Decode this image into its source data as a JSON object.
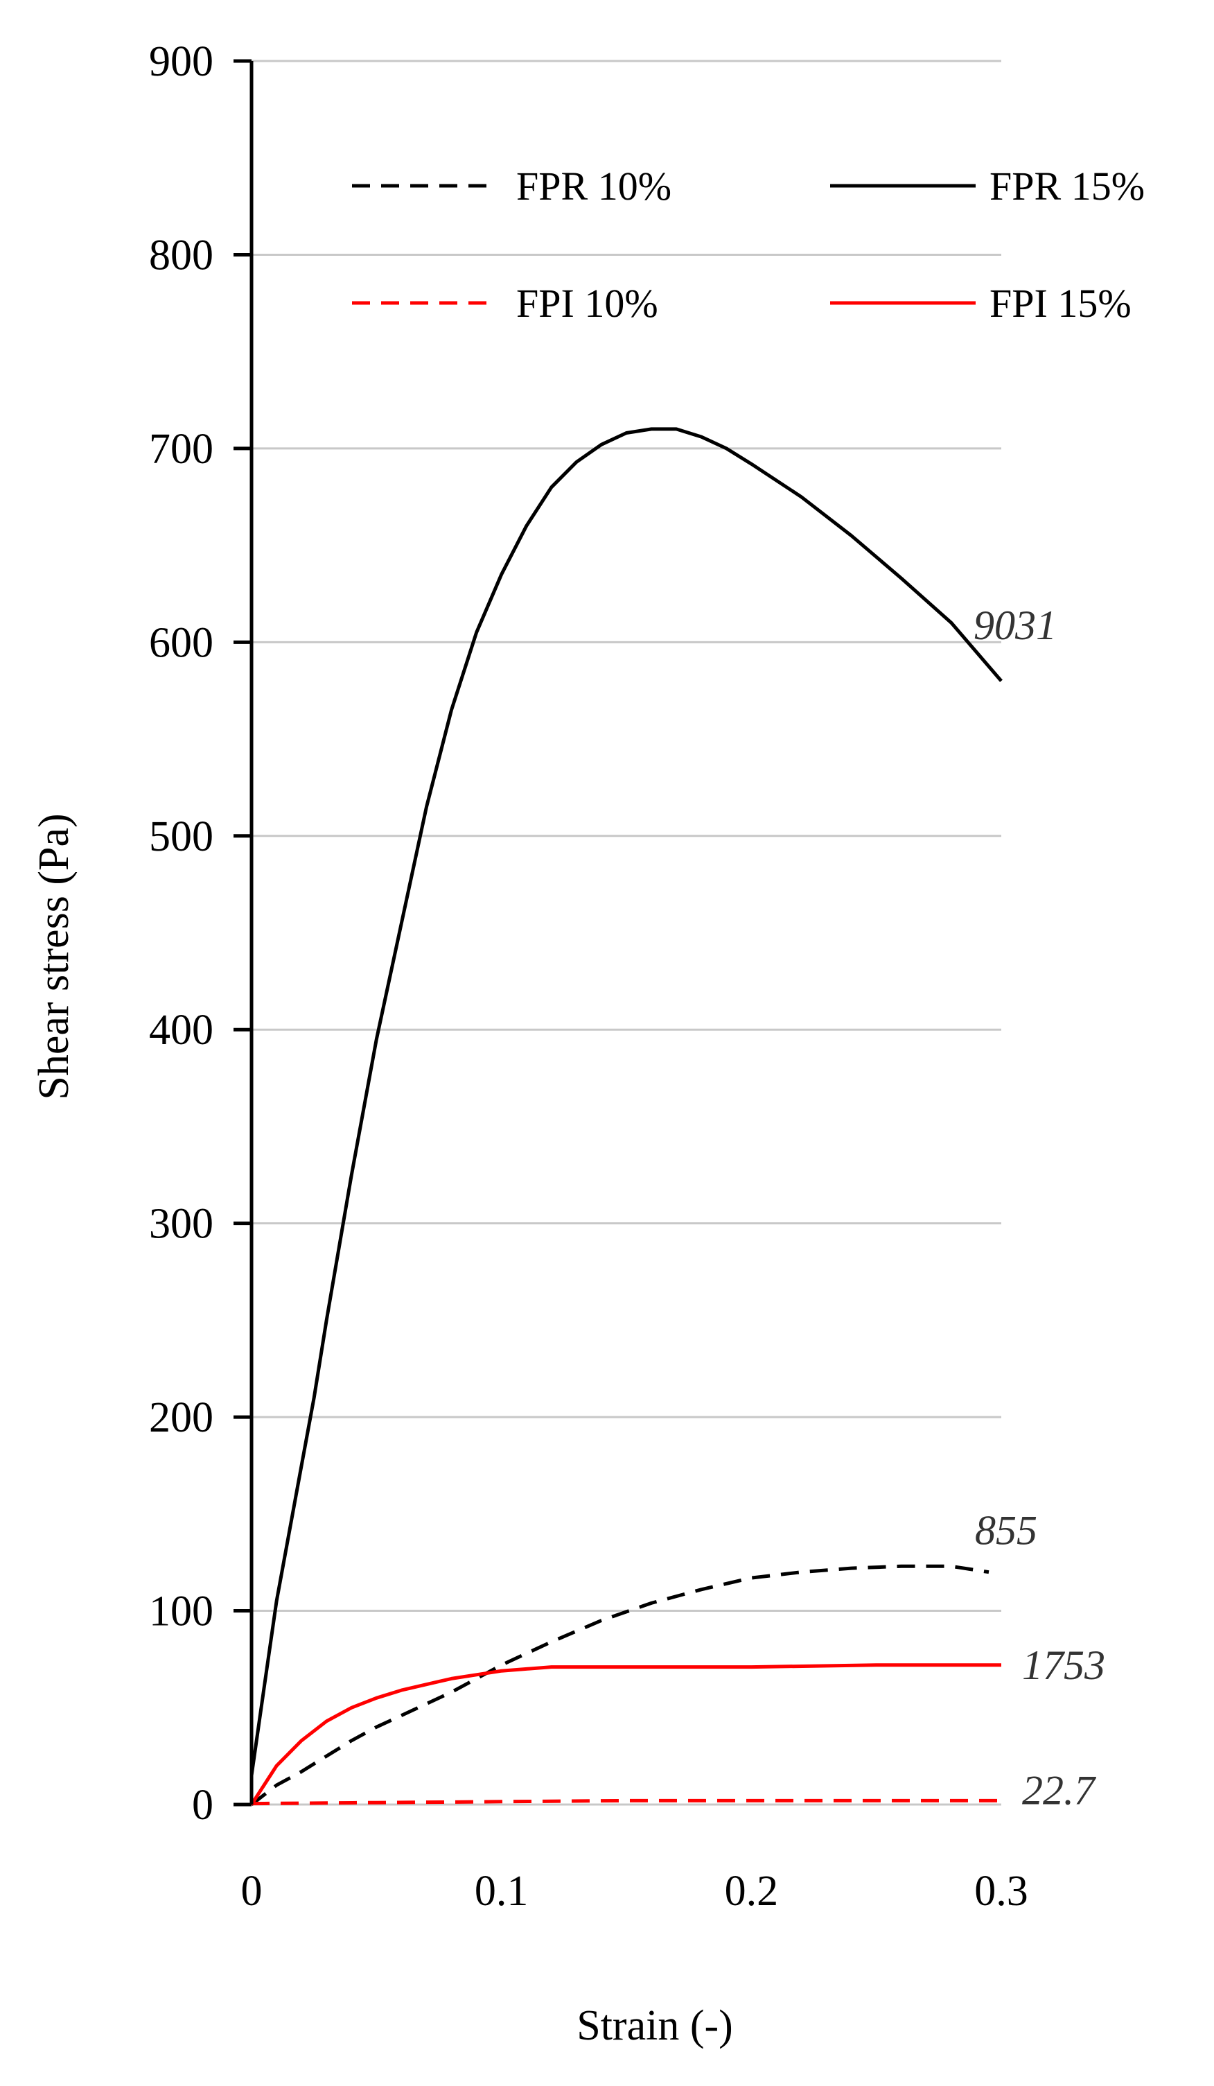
{
  "chart_data": {
    "type": "line",
    "xlabel": "Strain (-)",
    "ylabel": "Shear stress (Pa)",
    "xlim": [
      0,
      0.3
    ],
    "ylim": [
      0,
      900
    ],
    "x_ticks": [
      "0",
      "0.1",
      "0.2",
      "0.3"
    ],
    "y_ticks": [
      "0",
      "100",
      "200",
      "300",
      "400",
      "500",
      "600",
      "700",
      "800",
      "900"
    ],
    "grid": "horizontal",
    "legend_position": "top",
    "series": [
      {
        "name": "FPR 10%",
        "color": "#000000",
        "dash": "dashed",
        "annotation": "855",
        "x": [
          0,
          0.01,
          0.02,
          0.03,
          0.04,
          0.05,
          0.06,
          0.07,
          0.08,
          0.09,
          0.1,
          0.12,
          0.14,
          0.16,
          0.18,
          0.2,
          0.22,
          0.24,
          0.26,
          0.28,
          0.295
        ],
        "y": [
          0,
          10,
          17,
          25,
          33,
          40,
          46,
          52,
          58,
          65,
          72,
          84,
          95,
          104,
          111,
          117,
          120,
          122,
          123,
          123,
          120
        ]
      },
      {
        "name": "FPR 15%",
        "color": "#000000",
        "dash": "solid",
        "annotation": "9031",
        "x": [
          0,
          0.005,
          0.01,
          0.015,
          0.02,
          0.025,
          0.03,
          0.04,
          0.05,
          0.06,
          0.07,
          0.08,
          0.09,
          0.1,
          0.11,
          0.12,
          0.13,
          0.14,
          0.15,
          0.16,
          0.17,
          0.18,
          0.19,
          0.2,
          0.22,
          0.24,
          0.26,
          0.28,
          0.3
        ],
        "y": [
          15,
          60,
          105,
          140,
          175,
          210,
          250,
          325,
          395,
          455,
          515,
          565,
          605,
          635,
          660,
          680,
          693,
          702,
          708,
          710,
          710,
          706,
          700,
          692,
          675,
          655,
          633,
          610,
          580
        ]
      },
      {
        "name": "FPI 10%",
        "color": "#ff0000",
        "dash": "dashed",
        "annotation": "22.7",
        "x": [
          0,
          0.05,
          0.1,
          0.15,
          0.2,
          0.25,
          0.3
        ],
        "y": [
          0.5,
          1,
          1.5,
          2,
          2,
          2,
          2
        ]
      },
      {
        "name": "FPI 15%",
        "color": "#ff0000",
        "dash": "solid",
        "annotation": "1753",
        "x": [
          0,
          0.005,
          0.01,
          0.02,
          0.03,
          0.04,
          0.05,
          0.06,
          0.07,
          0.08,
          0.09,
          0.1,
          0.12,
          0.15,
          0.2,
          0.25,
          0.3
        ],
        "y": [
          0,
          10,
          20,
          33,
          43,
          50,
          55,
          59,
          62,
          65,
          67,
          69,
          71,
          71,
          71,
          72,
          72
        ]
      }
    ]
  }
}
